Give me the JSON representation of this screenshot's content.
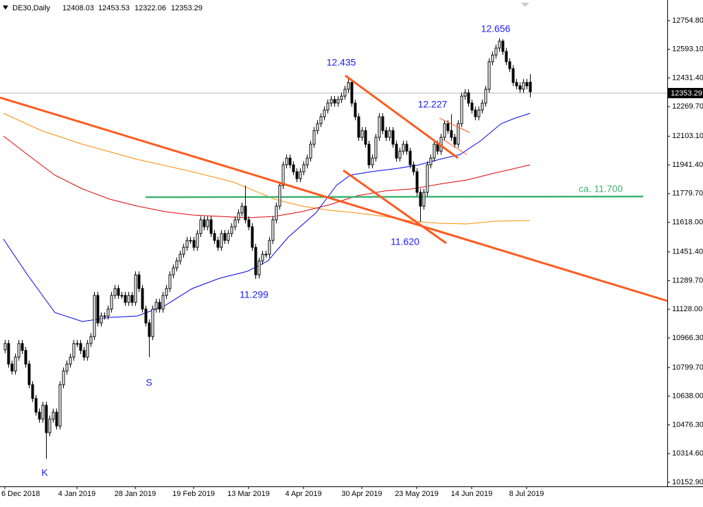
{
  "chart_data": {
    "type": "candlestick",
    "title": "DE30,Daily",
    "categories": [
      "6 Dec 2018",
      null,
      null,
      null,
      null,
      null,
      null,
      null,
      null,
      null,
      null,
      null,
      null,
      null,
      null,
      null,
      null,
      null,
      null,
      null,
      null,
      "4 Jan 2019",
      null,
      null,
      null,
      null,
      null,
      null,
      null,
      null,
      null,
      null,
      null,
      null,
      null,
      null,
      null,
      null,
      "28 Jan 2019",
      null,
      null,
      null,
      null,
      null,
      null,
      null,
      null,
      null,
      null,
      null,
      null,
      null,
      null,
      null,
      null,
      "19 Feb 2019",
      null,
      null,
      null,
      null,
      null,
      null,
      null,
      null,
      null,
      null,
      null,
      null,
      null,
      null,
      null,
      "13 Mar 2019",
      null,
      null,
      null,
      null,
      null,
      null,
      null,
      null,
      null,
      null,
      null,
      null,
      null,
      null,
      null,
      "4 Apr 2019",
      null,
      null,
      null,
      null,
      null,
      null,
      null,
      null,
      null,
      null,
      null,
      null,
      null,
      null,
      null,
      null,
      "30 Apr 2019",
      null,
      null,
      null,
      null,
      null,
      null,
      null,
      null,
      null,
      null,
      null,
      null,
      null,
      null,
      null,
      "23 May 2019",
      null,
      null,
      null,
      null,
      null,
      null,
      null,
      null,
      null,
      null,
      null,
      null,
      null,
      null,
      null,
      "14 Jun 2019",
      null,
      null,
      null,
      null,
      null,
      null,
      null,
      null,
      null,
      null,
      null,
      null,
      null,
      null,
      null,
      "8 Jul 2019",
      null
    ],
    "open": [
      10900,
      10935,
      10819,
      10780,
      10858,
      10935,
      10896,
      10819,
      10703,
      10625,
      10548,
      10509,
      10587,
      10432,
      10509,
      10548,
      10470,
      10703,
      10780,
      10819,
      10858,
      10935,
      10935,
      10896,
      10858,
      10935,
      10974,
      11206,
      11051,
      11090,
      11090,
      11129,
      11206,
      11245,
      11206,
      11206,
      11167,
      11206,
      11167,
      11322,
      11245,
      11129,
      11051,
      10974,
      11129,
      11167,
      11129,
      11206,
      11245,
      11322,
      11361,
      11400,
      11438,
      11477,
      11516,
      11516,
      11477,
      11555,
      11632,
      11593,
      11632,
      11555,
      11516,
      11477,
      11555,
      11516,
      11555,
      11593,
      11632,
      11671,
      11709,
      11632,
      11593,
      11477,
      11322,
      11400,
      11438,
      11438,
      11516,
      11632,
      11709,
      11826,
      11942,
      11980,
      11942,
      11903,
      11864,
      11903,
      11942,
      11980,
      12058,
      12135,
      12174,
      12213,
      12251,
      12290,
      12310,
      12290,
      12310,
      12329,
      12368,
      12406,
      12290,
      12213,
      12097,
      12135,
      12058,
      11942,
      11980,
      12097,
      12213,
      12135,
      12097,
      12135,
      12058,
      11980,
      12019,
      12058,
      12019,
      11942,
      11903,
      11787,
      11709,
      11787,
      11942,
      11980,
      12058,
      12019,
      12097,
      12174,
      12135,
      12097,
      12058,
      12174,
      12329,
      12348,
      12290,
      12251,
      12213,
      12251,
      12290,
      12368,
      12523,
      12561,
      12600,
      12639,
      12581,
      12523,
      12484,
      12406,
      12387,
      12368,
      12406,
      12408.03
    ],
    "high": [
      10955,
      10955,
      10839,
      10878,
      10955,
      10955,
      10916,
      10839,
      10723,
      10645,
      10568,
      10607,
      10607,
      10529,
      10568,
      10568,
      10723,
      10800,
      10839,
      10878,
      10955,
      10955,
      10955,
      10916,
      10955,
      10994,
      11226,
      11226,
      11110,
      11110,
      11149,
      11226,
      11265,
      11265,
      11226,
      11226,
      11226,
      11226,
      11342,
      11342,
      11265,
      11149,
      11071,
      11149,
      11187,
      11187,
      11226,
      11265,
      11342,
      11381,
      11420,
      11458,
      11497,
      11536,
      11536,
      11536,
      11575,
      11652,
      11652,
      11652,
      11652,
      11575,
      11536,
      11575,
      11575,
      11575,
      11613,
      11652,
      11691,
      11729,
      11826,
      11652,
      11613,
      11497,
      11420,
      11458,
      11458,
      11536,
      11652,
      11729,
      11846,
      11962,
      12000,
      12000,
      11962,
      11923,
      11923,
      11962,
      12000,
      12078,
      12155,
      12194,
      12233,
      12271,
      12310,
      12330,
      12330,
      12330,
      12349,
      12388,
      12435,
      12426,
      12310,
      12233,
      12155,
      12155,
      12078,
      12000,
      12117,
      12233,
      12233,
      12155,
      12155,
      12155,
      12078,
      12039,
      12078,
      12078,
      12039,
      11962,
      11923,
      11807,
      11807,
      11962,
      12000,
      12078,
      12078,
      12117,
      12194,
      12194,
      12227,
      12117,
      12194,
      12349,
      12368,
      12368,
      12310,
      12271,
      12271,
      12310,
      12388,
      12543,
      12581,
      12620,
      12656,
      12650,
      12601,
      12543,
      12504,
      12426,
      12407,
      12426,
      12426,
      12453.53
    ],
    "low": [
      10880,
      10799,
      10760,
      10760,
      10838,
      10876,
      10799,
      10683,
      10605,
      10528,
      10489,
      10489,
      10285,
      10412,
      10489,
      10450,
      10450,
      10683,
      10760,
      10799,
      10838,
      10915,
      10876,
      10838,
      10838,
      10915,
      10954,
      11031,
      11031,
      11070,
      11070,
      11109,
      11186,
      11186,
      11186,
      11147,
      11147,
      11147,
      11147,
      11225,
      11109,
      11031,
      10858,
      10954,
      11109,
      11109,
      11109,
      11186,
      11225,
      11302,
      11341,
      11380,
      11418,
      11457,
      11496,
      11457,
      11457,
      11535,
      11573,
      11573,
      11535,
      11496,
      11457,
      11457,
      11496,
      11496,
      11535,
      11573,
      11612,
      11651,
      11612,
      11573,
      11457,
      11299,
      11302,
      11380,
      11418,
      11418,
      11496,
      11612,
      11689,
      11806,
      11922,
      11922,
      11883,
      11844,
      11844,
      11883,
      11922,
      11960,
      12038,
      12115,
      12154,
      12193,
      12231,
      12270,
      12270,
      12270,
      12290,
      12309,
      12348,
      12270,
      12193,
      12077,
      12077,
      12038,
      11922,
      11922,
      11960,
      12077,
      12115,
      12077,
      12077,
      12038,
      11960,
      11960,
      11999,
      11999,
      11922,
      11883,
      11767,
      11620,
      11689,
      11767,
      11922,
      11960,
      11999,
      11999,
      12077,
      12115,
      12077,
      12038,
      12038,
      12154,
      12309,
      12270,
      12231,
      12193,
      12193,
      12231,
      12270,
      12348,
      12503,
      12541,
      12580,
      12561,
      12503,
      12464,
      12386,
      12367,
      12348,
      12348,
      12367,
      12322.06
    ],
    "close": [
      10935,
      10819,
      10780,
      10858,
      10935,
      10896,
      10819,
      10703,
      10625,
      10548,
      10509,
      10587,
      10432,
      10509,
      10548,
      10470,
      10703,
      10780,
      10819,
      10858,
      10935,
      10935,
      10896,
      10858,
      10935,
      10974,
      11206,
      11051,
      11090,
      11090,
      11129,
      11206,
      11245,
      11206,
      11206,
      11167,
      11206,
      11167,
      11322,
      11245,
      11129,
      11051,
      10974,
      11129,
      11167,
      11129,
      11206,
      11245,
      11322,
      11361,
      11400,
      11438,
      11477,
      11516,
      11516,
      11477,
      11555,
      11632,
      11593,
      11632,
      11555,
      11516,
      11477,
      11555,
      11516,
      11555,
      11593,
      11632,
      11671,
      11709,
      11632,
      11593,
      11477,
      11322,
      11400,
      11438,
      11438,
      11516,
      11632,
      11709,
      11826,
      11942,
      11980,
      11942,
      11903,
      11864,
      11903,
      11942,
      11980,
      12058,
      12135,
      12174,
      12213,
      12251,
      12290,
      12310,
      12290,
      12310,
      12329,
      12368,
      12406,
      12290,
      12213,
      12097,
      12135,
      12058,
      11942,
      11980,
      12097,
      12213,
      12135,
      12097,
      12135,
      12058,
      11980,
      12019,
      12058,
      12019,
      11942,
      11903,
      11787,
      11709,
      11787,
      11942,
      11980,
      12058,
      12019,
      12097,
      12174,
      12135,
      12097,
      12058,
      12174,
      12329,
      12348,
      12290,
      12251,
      12213,
      12251,
      12290,
      12368,
      12523,
      12561,
      12600,
      12639,
      12581,
      12523,
      12484,
      12406,
      12387,
      12368,
      12406,
      12387,
      12353.29
    ],
    "ylim": [
      10152.9,
      12754.8
    ],
    "yticks": [
      {
        "value": 12754.8,
        "label": "12754.80"
      },
      {
        "value": 12593.1,
        "label": "12593.10"
      },
      {
        "value": 12431.4,
        "label": "12431.40"
      },
      {
        "value": 12269.7,
        "label": "12269.70"
      },
      {
        "value": 12103.1,
        "label": "12103.10"
      },
      {
        "value": 11941.4,
        "label": "11941.40"
      },
      {
        "value": 11779.7,
        "label": "11779.70"
      },
      {
        "value": 11618,
        "label": "11618.00"
      },
      {
        "value": 11451.4,
        "label": "11451.40"
      },
      {
        "value": 11289.7,
        "label": "11289.70"
      },
      {
        "value": 11128,
        "label": "11128.00"
      },
      {
        "value": 10966.3,
        "label": "10966.30"
      },
      {
        "value": 10799.7,
        "label": "10799.70"
      },
      {
        "value": 10638,
        "label": "10638.00"
      },
      {
        "value": 10476.3,
        "label": "10476.30"
      },
      {
        "value": 10314.6,
        "label": "10314.60"
      },
      {
        "value": 10152.9,
        "label": "10152.90"
      }
    ],
    "annotations": [
      "12.656",
      "12.435",
      "12.227",
      "11.620",
      "11.299",
      "S",
      "K",
      "ca. 11.700"
    ],
    "bull_color": "#ffffff",
    "bear_color": "#000000",
    "annotation_color": "#1a1aff"
  }
}
